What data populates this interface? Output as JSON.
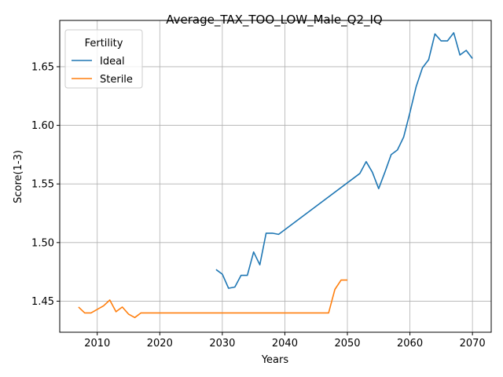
{
  "chart_data": {
    "type": "line",
    "title": "Average_TAX_TOO_LOW_Male_Q2_IQ",
    "xlabel": "Years",
    "ylabel": "Score(1-3)",
    "xlim": [
      2004,
      2073
    ],
    "ylim": [
      1.4235,
      1.6895
    ],
    "xticks": [
      2010,
      2020,
      2030,
      2040,
      2050,
      2060,
      2070
    ],
    "yticks": [
      1.45,
      1.5,
      1.55,
      1.6,
      1.65
    ],
    "ytick_labels": [
      "1.45",
      "1.50",
      "1.55",
      "1.60",
      "1.65"
    ],
    "grid": true,
    "legend": {
      "title": "Fertility",
      "placement": "top-left"
    },
    "series": [
      {
        "name": "Ideal",
        "color": "#1f77b4",
        "x": [
          2029,
          2030,
          2031,
          2032,
          2033,
          2034,
          2035,
          2036,
          2037,
          2038,
          2039,
          2052,
          2053,
          2054,
          2055,
          2056,
          2057,
          2058,
          2059,
          2060,
          2061,
          2062,
          2063,
          2064,
          2065,
          2066,
          2067,
          2068,
          2069,
          2070
        ],
        "y": [
          1.477,
          1.473,
          1.461,
          1.462,
          1.472,
          1.472,
          1.492,
          1.481,
          1.508,
          1.508,
          1.507,
          1.559,
          1.569,
          1.56,
          1.546,
          1.56,
          1.575,
          1.579,
          1.59,
          1.611,
          1.633,
          1.649,
          1.656,
          1.678,
          1.672,
          1.672,
          1.679,
          1.66,
          1.664,
          1.657
        ]
      },
      {
        "name": "Sterile",
        "color": "#ff7f0e",
        "x": [
          2007,
          2008,
          2009,
          2010,
          2011,
          2012,
          2013,
          2014,
          2015,
          2016,
          2017,
          2018,
          2047,
          2048,
          2049,
          2050
        ],
        "y": [
          1.445,
          1.44,
          1.44,
          1.443,
          1.446,
          1.451,
          1.441,
          1.445,
          1.439,
          1.436,
          1.44,
          1.44,
          1.44,
          1.46,
          1.468,
          1.468
        ]
      }
    ]
  }
}
